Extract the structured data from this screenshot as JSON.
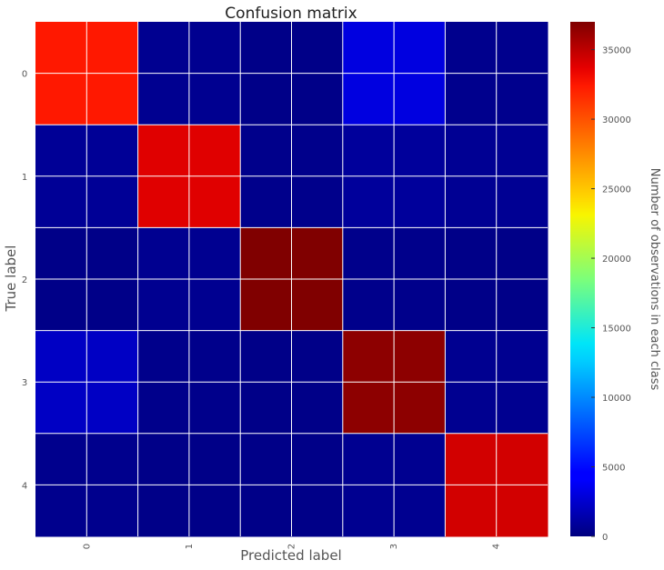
{
  "chart_data": {
    "type": "heatmap",
    "title": "Confusion matrix",
    "xlabel": "Predicted label",
    "ylabel": "True label",
    "x_categories": [
      "0",
      "1",
      "2",
      "3",
      "4"
    ],
    "y_categories": [
      "0",
      "1",
      "2",
      "3",
      "4"
    ],
    "matrix": [
      [
        31500,
        600,
        300,
        3500,
        500
      ],
      [
        800,
        33500,
        400,
        1000,
        700
      ],
      [
        300,
        600,
        37000,
        400,
        300
      ],
      [
        2500,
        400,
        300,
        36500,
        600
      ],
      [
        500,
        300,
        300,
        600,
        34000
      ]
    ],
    "colormap": "jet",
    "grid": true,
    "colorbar": {
      "label": "Number of observations in each class",
      "range": [
        0,
        37000
      ],
      "ticks": [
        0,
        5000,
        10000,
        15000,
        20000,
        25000,
        30000,
        35000
      ]
    }
  }
}
